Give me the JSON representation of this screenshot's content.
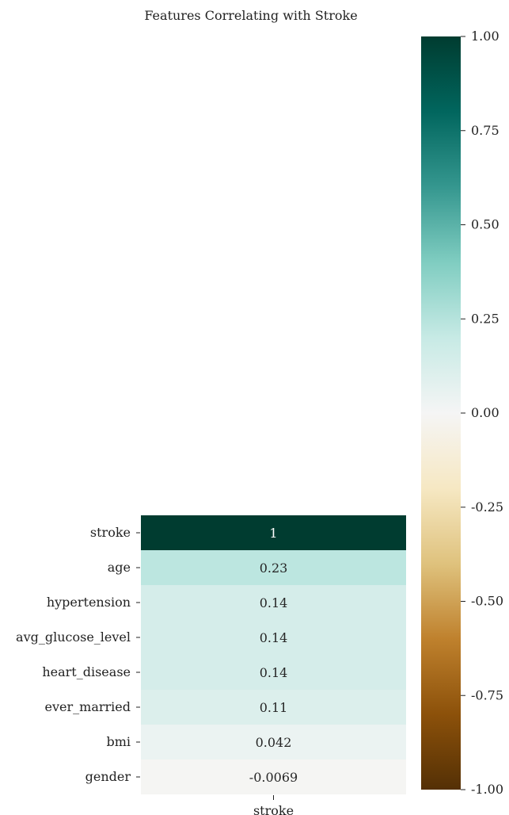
{
  "chart_data": {
    "type": "heatmap",
    "title": "Features Correlating with Stroke",
    "x_tick_labels": [
      "stroke"
    ],
    "rows": [
      {
        "label": "stroke",
        "value": 1,
        "text": "1"
      },
      {
        "label": "age",
        "value": 0.23,
        "text": "0.23"
      },
      {
        "label": "hypertension",
        "value": 0.14,
        "text": "0.14"
      },
      {
        "label": "avg_glucose_level",
        "value": 0.14,
        "text": "0.14"
      },
      {
        "label": "heart_disease",
        "value": 0.14,
        "text": "0.14"
      },
      {
        "label": "ever_married",
        "value": 0.11,
        "text": "0.11"
      },
      {
        "label": "bmi",
        "value": 0.042,
        "text": "0.042"
      },
      {
        "label": "gender",
        "value": -0.0069,
        "text": "-0.0069"
      }
    ],
    "colorbar": {
      "colormap": "BrBG",
      "range": [
        -1.0,
        1.0
      ],
      "ticks": [
        {
          "value": 1.0,
          "label": "1.00"
        },
        {
          "value": 0.75,
          "label": "0.75"
        },
        {
          "value": 0.5,
          "label": "0.50"
        },
        {
          "value": 0.25,
          "label": "0.25"
        },
        {
          "value": 0.0,
          "label": "0.00"
        },
        {
          "value": -0.25,
          "label": "-0.25"
        },
        {
          "value": -0.5,
          "label": "-0.50"
        },
        {
          "value": -0.75,
          "label": "-0.75"
        },
        {
          "value": -1.0,
          "label": "-1.00"
        }
      ],
      "colors": [
        "#543005",
        "#8c510a",
        "#bf812d",
        "#dfc27d",
        "#f6e8c3",
        "#f5f5f5",
        "#c7eae5",
        "#80cdc1",
        "#35978f",
        "#01665e",
        "#003c30"
      ]
    }
  }
}
